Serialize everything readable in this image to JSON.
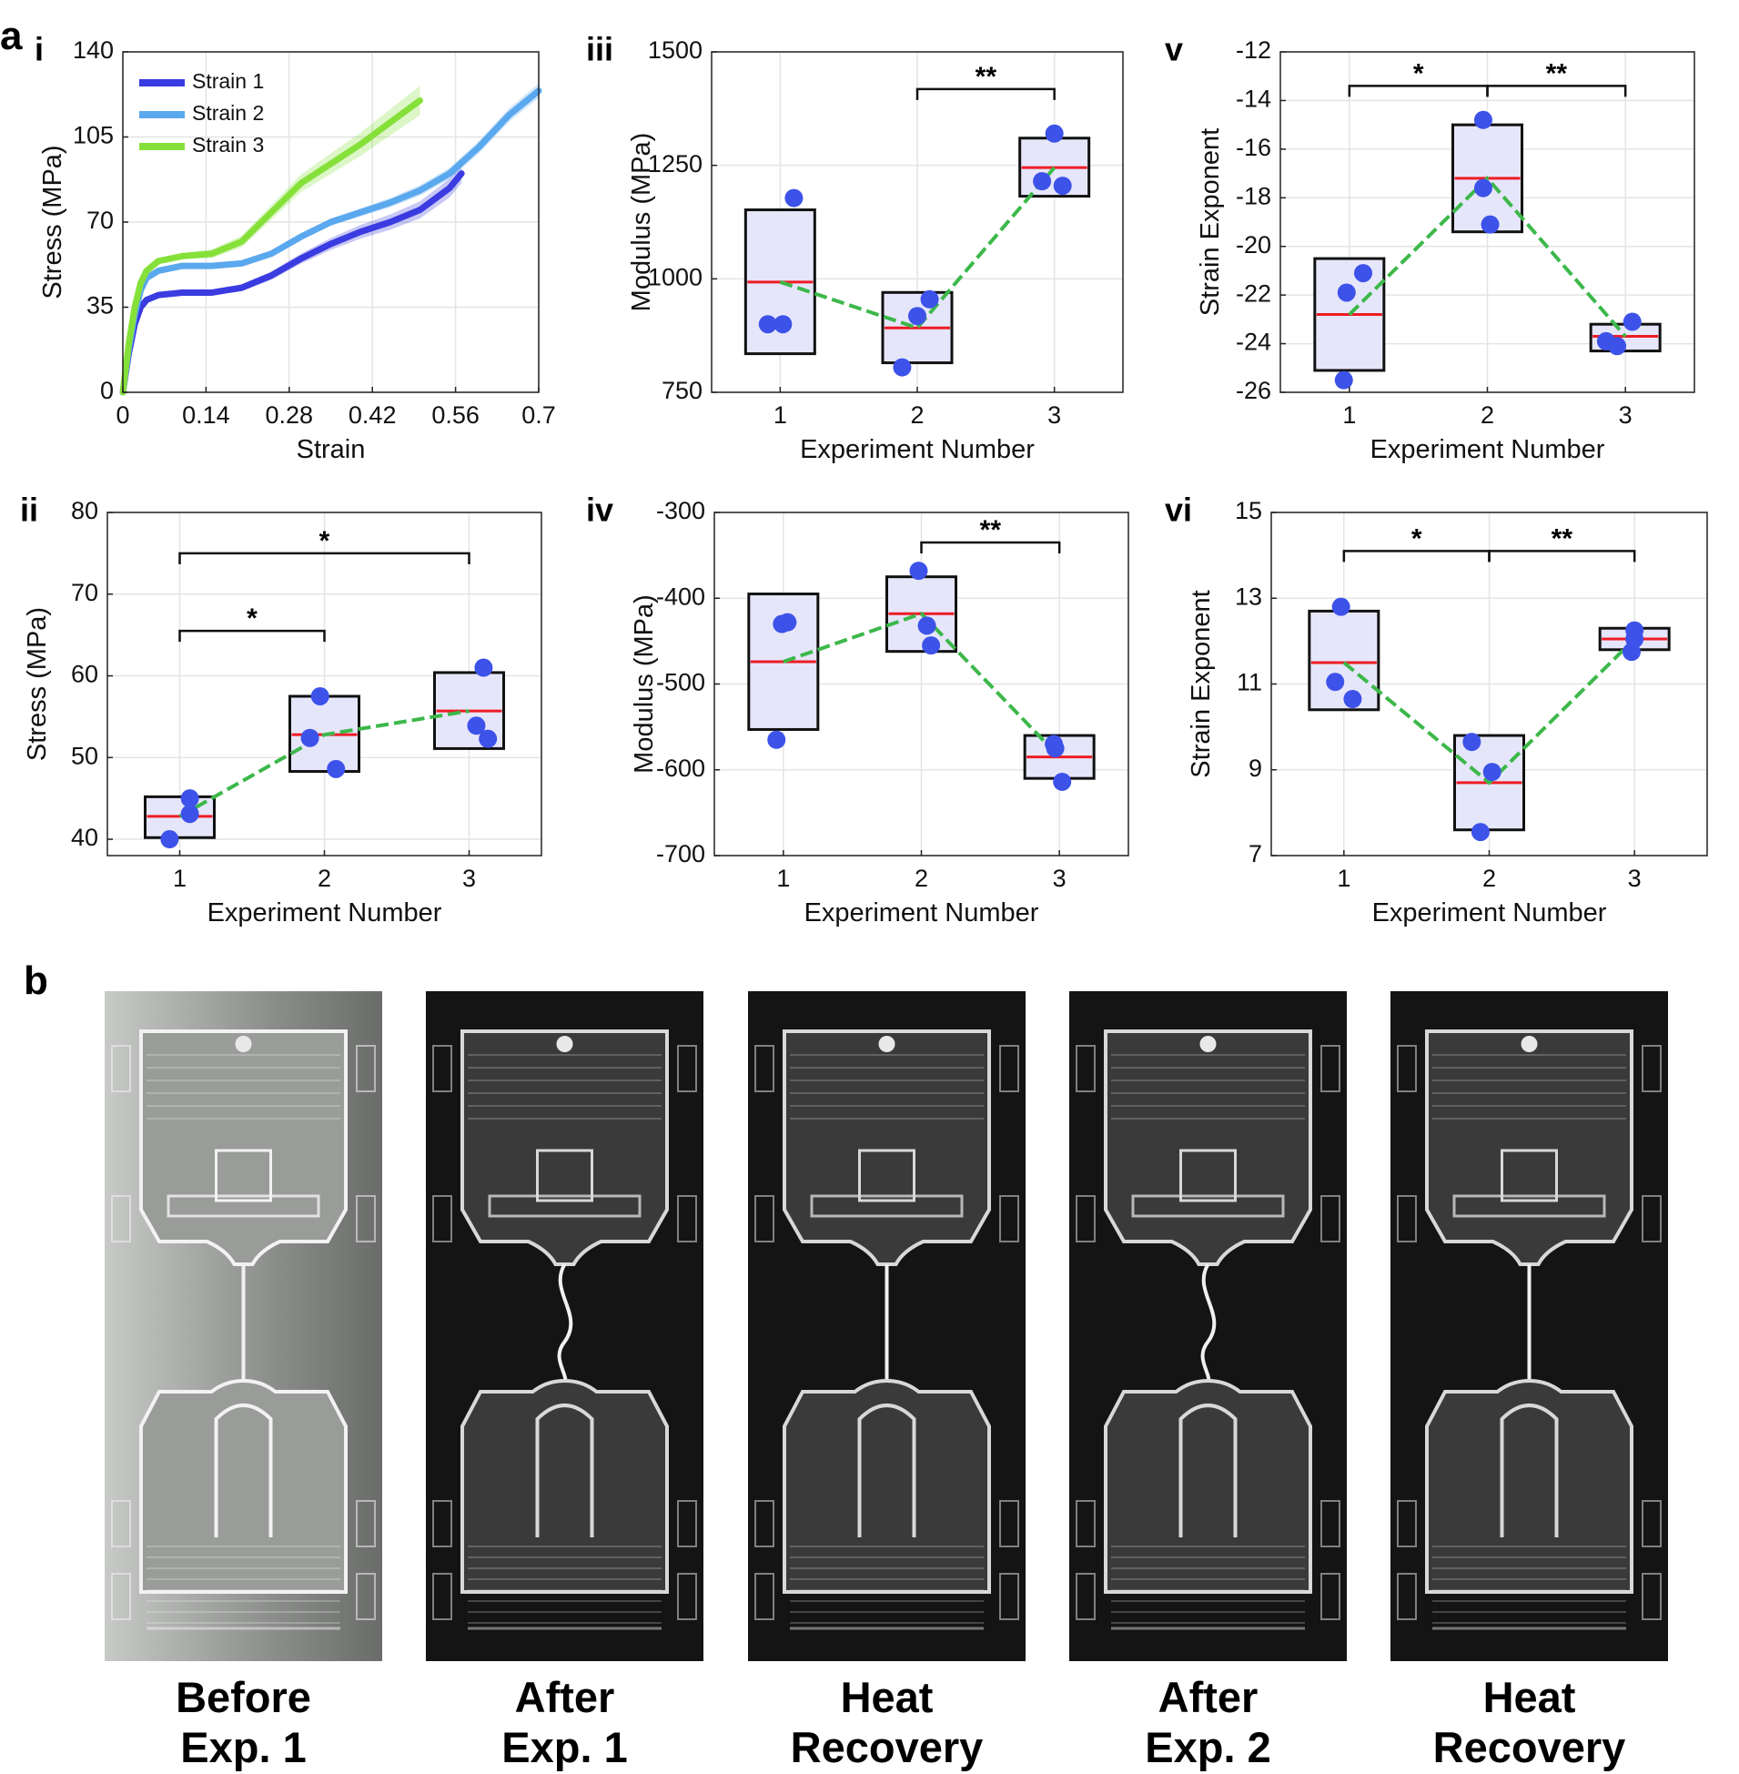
{
  "figure": {
    "label_a": "a",
    "label_b": "b"
  },
  "colors": {
    "strain1": "#3a3be0",
    "strain2": "#5aa8ee",
    "strain3": "#86e03a",
    "dot": "#3d52e8",
    "median": "#ee1c24",
    "trend": "#3cb84a",
    "box_fill": "#e6e6fb"
  },
  "chart_data": [
    {
      "id": "i",
      "panel_label": "i",
      "type": "line",
      "xlabel": "Strain",
      "ylabel": "Stress (MPa)",
      "xlim": [
        0,
        0.7
      ],
      "ylim": [
        0,
        140
      ],
      "xticks": [
        0,
        0.14,
        0.28,
        0.42,
        0.56,
        0.7
      ],
      "xtick_labels": [
        "0",
        "0.14",
        "0.28",
        "0.42",
        "0.56",
        "0.7"
      ],
      "yticks": [
        0,
        35,
        70,
        105,
        140
      ],
      "ytick_labels": [
        "0",
        "35",
        "70",
        "105",
        "140"
      ],
      "grid": true,
      "legend_position": "top-left",
      "series": [
        {
          "name": "Strain 1",
          "x": [
            0,
            0.01,
            0.02,
            0.03,
            0.04,
            0.06,
            0.1,
            0.15,
            0.2,
            0.25,
            0.3,
            0.35,
            0.4,
            0.45,
            0.5,
            0.55,
            0.57
          ],
          "y": [
            0,
            16,
            28,
            35,
            38,
            40,
            41,
            41,
            43,
            48,
            55,
            61,
            66,
            70,
            75,
            84,
            90
          ],
          "band": 4
        },
        {
          "name": "Strain 2",
          "x": [
            0,
            0.01,
            0.02,
            0.03,
            0.04,
            0.06,
            0.1,
            0.15,
            0.2,
            0.25,
            0.3,
            0.35,
            0.4,
            0.45,
            0.5,
            0.55,
            0.6,
            0.65,
            0.7
          ],
          "y": [
            0,
            18,
            32,
            42,
            47,
            50,
            52,
            52,
            53,
            57,
            64,
            70,
            74,
            78,
            83,
            90,
            101,
            114,
            124
          ],
          "band": 3
        },
        {
          "name": "Strain 3",
          "x": [
            0,
            0.01,
            0.02,
            0.03,
            0.04,
            0.06,
            0.1,
            0.15,
            0.2,
            0.25,
            0.3,
            0.35,
            0.4,
            0.45,
            0.5
          ],
          "y": [
            0,
            20,
            35,
            45,
            50,
            54,
            56,
            57,
            62,
            74,
            86,
            94,
            102,
            111,
            120
          ],
          "band": 6
        }
      ]
    },
    {
      "id": "ii",
      "panel_label": "ii",
      "type": "box",
      "xlabel": "Experiment Number",
      "ylabel": "Stress (MPa)",
      "xlim": [
        0.5,
        3.5
      ],
      "ylim": [
        38,
        80
      ],
      "xticks": [
        1,
        2,
        3
      ],
      "xtick_labels": [
        "1",
        "2",
        "3"
      ],
      "yticks": [
        40,
        50,
        60,
        70,
        80
      ],
      "ytick_labels": [
        "40",
        "50",
        "60",
        "70",
        "80"
      ],
      "grid": true,
      "boxes": [
        {
          "x": 1,
          "low": 40.2,
          "high": 45.2,
          "median": 42.8
        },
        {
          "x": 2,
          "low": 48.3,
          "high": 57.5,
          "median": 52.8
        },
        {
          "x": 3,
          "low": 51.1,
          "high": 60.4,
          "median": 55.7
        }
      ],
      "points": [
        {
          "x": 0.93,
          "y": 40.0
        },
        {
          "x": 1.07,
          "y": 45.0
        },
        {
          "x": 1.07,
          "y": 43.1
        },
        {
          "x": 1.97,
          "y": 57.5
        },
        {
          "x": 1.9,
          "y": 52.4
        },
        {
          "x": 2.08,
          "y": 48.6
        },
        {
          "x": 3.1,
          "y": 61.0
        },
        {
          "x": 3.05,
          "y": 53.9
        },
        {
          "x": 3.13,
          "y": 52.3
        }
      ],
      "trend": [
        {
          "x": 1,
          "y": 42.8
        },
        {
          "x": 2,
          "y": 52.8
        },
        {
          "x": 3,
          "y": 55.7
        }
      ],
      "brackets": [
        {
          "from": 1,
          "to": 2,
          "y": 65.5,
          "label": "*"
        },
        {
          "from": 1,
          "to": 3,
          "y": 75.0,
          "label": "*"
        }
      ]
    },
    {
      "id": "iii",
      "panel_label": "iii",
      "type": "box",
      "xlabel": "Experiment Number",
      "ylabel": "Modulus (MPa)",
      "xlim": [
        0.5,
        3.5
      ],
      "ylim": [
        750,
        1500
      ],
      "xticks": [
        1,
        2,
        3
      ],
      "xtick_labels": [
        "1",
        "2",
        "3"
      ],
      "yticks": [
        750,
        1000,
        1250,
        1500
      ],
      "ytick_labels": [
        "750",
        "1000",
        "1250",
        "1500"
      ],
      "grid": true,
      "boxes": [
        {
          "x": 1,
          "low": 835,
          "high": 1152,
          "median": 993
        },
        {
          "x": 2,
          "low": 815,
          "high": 970,
          "median": 892
        },
        {
          "x": 3,
          "low": 1182,
          "high": 1310,
          "median": 1245
        }
      ],
      "points": [
        {
          "x": 1.1,
          "y": 1178
        },
        {
          "x": 0.91,
          "y": 900
        },
        {
          "x": 1.02,
          "y": 900
        },
        {
          "x": 1.89,
          "y": 805
        },
        {
          "x": 2.0,
          "y": 918
        },
        {
          "x": 2.09,
          "y": 955
        },
        {
          "x": 3.0,
          "y": 1320
        },
        {
          "x": 2.91,
          "y": 1215
        },
        {
          "x": 3.06,
          "y": 1205
        }
      ],
      "trend": [
        {
          "x": 1,
          "y": 993
        },
        {
          "x": 2,
          "y": 892
        },
        {
          "x": 3,
          "y": 1245
        }
      ],
      "brackets": [
        {
          "from": 2,
          "to": 3,
          "y": 1418,
          "label": "**"
        }
      ]
    },
    {
      "id": "iv",
      "panel_label": "iv",
      "type": "box",
      "xlabel": "Experiment Number",
      "ylabel": "Modulus (MPa)",
      "xlim": [
        0.5,
        3.5
      ],
      "ylim": [
        -700,
        -300
      ],
      "xticks": [
        1,
        2,
        3
      ],
      "xtick_labels": [
        "1",
        "2",
        "3"
      ],
      "yticks": [
        -700,
        -600,
        -500,
        -400,
        -300
      ],
      "ytick_labels": [
        "-700",
        "-600",
        "-500",
        "-400",
        "-300"
      ],
      "grid": true,
      "boxes": [
        {
          "x": 1,
          "low": -553,
          "high": -395,
          "median": -474
        },
        {
          "x": 2,
          "low": -462,
          "high": -375,
          "median": -418
        },
        {
          "x": 3,
          "low": -610,
          "high": -560,
          "median": -585
        }
      ],
      "points": [
        {
          "x": 0.95,
          "y": -565
        },
        {
          "x": 0.99,
          "y": -430
        },
        {
          "x": 1.03,
          "y": -428
        },
        {
          "x": 1.98,
          "y": -368
        },
        {
          "x": 2.04,
          "y": -432
        },
        {
          "x": 2.07,
          "y": -455
        },
        {
          "x": 2.96,
          "y": -570
        },
        {
          "x": 2.97,
          "y": -575
        },
        {
          "x": 3.02,
          "y": -614
        }
      ],
      "trend": [
        {
          "x": 1,
          "y": -474
        },
        {
          "x": 2,
          "y": -418
        },
        {
          "x": 3,
          "y": -585
        }
      ],
      "brackets": [
        {
          "from": 2,
          "to": 3,
          "y": -335,
          "label": "**"
        }
      ]
    },
    {
      "id": "v",
      "panel_label": "v",
      "type": "box",
      "xlabel": "Experiment Number",
      "ylabel": "Strain Exponent",
      "xlim": [
        0.5,
        3.5
      ],
      "ylim": [
        -26,
        -12
      ],
      "xticks": [
        1,
        2,
        3
      ],
      "xtick_labels": [
        "1",
        "2",
        "3"
      ],
      "yticks": [
        -26,
        -24,
        -22,
        -20,
        -18,
        -16,
        -14,
        -12
      ],
      "ytick_labels": [
        "-26",
        "-24",
        "-22",
        "-20",
        "-18",
        "-16",
        "-14",
        "-12"
      ],
      "grid": true,
      "boxes": [
        {
          "x": 1,
          "low": -25.1,
          "high": -20.5,
          "median": -22.8
        },
        {
          "x": 2,
          "low": -19.4,
          "high": -15.0,
          "median": -17.2
        },
        {
          "x": 3,
          "low": -24.3,
          "high": -23.2,
          "median": -23.7
        }
      ],
      "points": [
        {
          "x": 0.96,
          "y": -25.5
        },
        {
          "x": 0.98,
          "y": -21.9
        },
        {
          "x": 1.1,
          "y": -21.1
        },
        {
          "x": 1.97,
          "y": -14.8
        },
        {
          "x": 1.97,
          "y": -17.6
        },
        {
          "x": 2.02,
          "y": -19.1
        },
        {
          "x": 2.86,
          "y": -23.9
        },
        {
          "x": 2.94,
          "y": -24.1
        },
        {
          "x": 3.05,
          "y": -23.1
        }
      ],
      "trend": [
        {
          "x": 1,
          "y": -22.8
        },
        {
          "x": 2,
          "y": -17.2
        },
        {
          "x": 3,
          "y": -23.7
        }
      ],
      "brackets": [
        {
          "from": 1,
          "to": 2,
          "y": -13.4,
          "label": "*"
        },
        {
          "from": 2,
          "to": 3,
          "y": -13.4,
          "label": "**"
        }
      ]
    },
    {
      "id": "vi",
      "panel_label": "vi",
      "type": "box",
      "xlabel": "Experiment Number",
      "ylabel": "Strain Exponent",
      "xlim": [
        0.5,
        3.5
      ],
      "ylim": [
        7,
        15
      ],
      "xticks": [
        1,
        2,
        3
      ],
      "xtick_labels": [
        "1",
        "2",
        "3"
      ],
      "yticks": [
        7,
        9,
        11,
        13,
        15
      ],
      "ytick_labels": [
        "7",
        "9",
        "11",
        "13",
        "15"
      ],
      "grid": true,
      "boxes": [
        {
          "x": 1,
          "low": 10.4,
          "high": 12.7,
          "median": 11.5
        },
        {
          "x": 2,
          "low": 7.6,
          "high": 9.8,
          "median": 8.7
        },
        {
          "x": 3,
          "low": 11.8,
          "high": 12.3,
          "median": 12.05
        }
      ],
      "points": [
        {
          "x": 0.98,
          "y": 12.8
        },
        {
          "x": 0.94,
          "y": 11.05
        },
        {
          "x": 1.06,
          "y": 10.65
        },
        {
          "x": 1.88,
          "y": 9.65
        },
        {
          "x": 2.02,
          "y": 8.95
        },
        {
          "x": 1.94,
          "y": 7.55
        },
        {
          "x": 3.0,
          "y": 12.25
        },
        {
          "x": 3.0,
          "y": 12.05
        },
        {
          "x": 2.98,
          "y": 11.75
        }
      ],
      "trend": [
        {
          "x": 1,
          "y": 11.5
        },
        {
          "x": 2,
          "y": 8.7
        },
        {
          "x": 3,
          "y": 12.05
        }
      ],
      "brackets": [
        {
          "from": 1,
          "to": 2,
          "y": 14.1,
          "label": "*"
        },
        {
          "from": 2,
          "to": 3,
          "y": 14.1,
          "label": "**"
        }
      ]
    }
  ],
  "images": {
    "captions": [
      {
        "line1": "Before",
        "line2": "Exp. 1",
        "light": true
      },
      {
        "line1": "After",
        "line2": "Exp. 1",
        "wire": "wavy"
      },
      {
        "line1": "Heat",
        "line2": "Recovery",
        "wire": "straight"
      },
      {
        "line1": "After",
        "line2": "Exp. 2",
        "wire": "wavy"
      },
      {
        "line1": "Heat",
        "line2": "Recovery",
        "wire": "straight"
      }
    ]
  }
}
